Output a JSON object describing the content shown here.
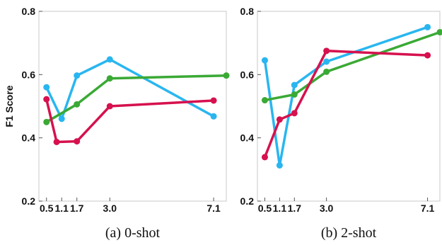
{
  "chart_data": [
    {
      "type": "line",
      "caption": "(a) 0-shot",
      "ylabel": "F1 Score",
      "x_ticks": [
        "0.5",
        "1.1",
        "1.7",
        "3.0",
        "7.1"
      ],
      "y_ticks": [
        "0.2",
        "0.4",
        "0.6",
        "0.8"
      ],
      "xlim": [
        0.2,
        7.6
      ],
      "ylim": [
        0.2,
        0.8
      ],
      "grid": false,
      "series": [
        {
          "color": "#29b6f0",
          "x": [
            0.5,
            1.1,
            1.7,
            3.0,
            7.1
          ],
          "values": [
            0.56,
            0.46,
            0.597,
            0.648,
            0.468
          ]
        },
        {
          "color": "#3aa935",
          "x": [
            0.5,
            1.7,
            3.0,
            7.6
          ],
          "values": [
            0.45,
            0.506,
            0.588,
            0.597
          ]
        },
        {
          "color": "#d6114e",
          "x": [
            0.5,
            0.9,
            1.7,
            3.0,
            7.1
          ],
          "values": [
            0.522,
            0.387,
            0.389,
            0.5,
            0.518
          ]
        }
      ]
    },
    {
      "type": "line",
      "caption": "(b) 2-shot",
      "ylabel": "",
      "x_ticks": [
        "0.5",
        "1.1",
        "1.7",
        "3.0",
        "7.1"
      ],
      "y_ticks": [
        "0.2",
        "0.4",
        "0.6",
        "0.8"
      ],
      "xlim": [
        0.2,
        7.6
      ],
      "ylim": [
        0.2,
        0.8
      ],
      "grid": false,
      "series": [
        {
          "color": "#29b6f0",
          "x": [
            0.5,
            1.1,
            1.7,
            3.0,
            7.1
          ],
          "values": [
            0.645,
            0.313,
            0.567,
            0.641,
            0.75
          ]
        },
        {
          "color": "#3aa935",
          "x": [
            0.5,
            1.7,
            3.0,
            7.6
          ],
          "values": [
            0.519,
            0.537,
            0.609,
            0.734
          ]
        },
        {
          "color": "#d6114e",
          "x": [
            0.5,
            1.1,
            1.7,
            3.0,
            7.1
          ],
          "values": [
            0.339,
            0.458,
            0.478,
            0.675,
            0.661
          ]
        }
      ]
    }
  ]
}
